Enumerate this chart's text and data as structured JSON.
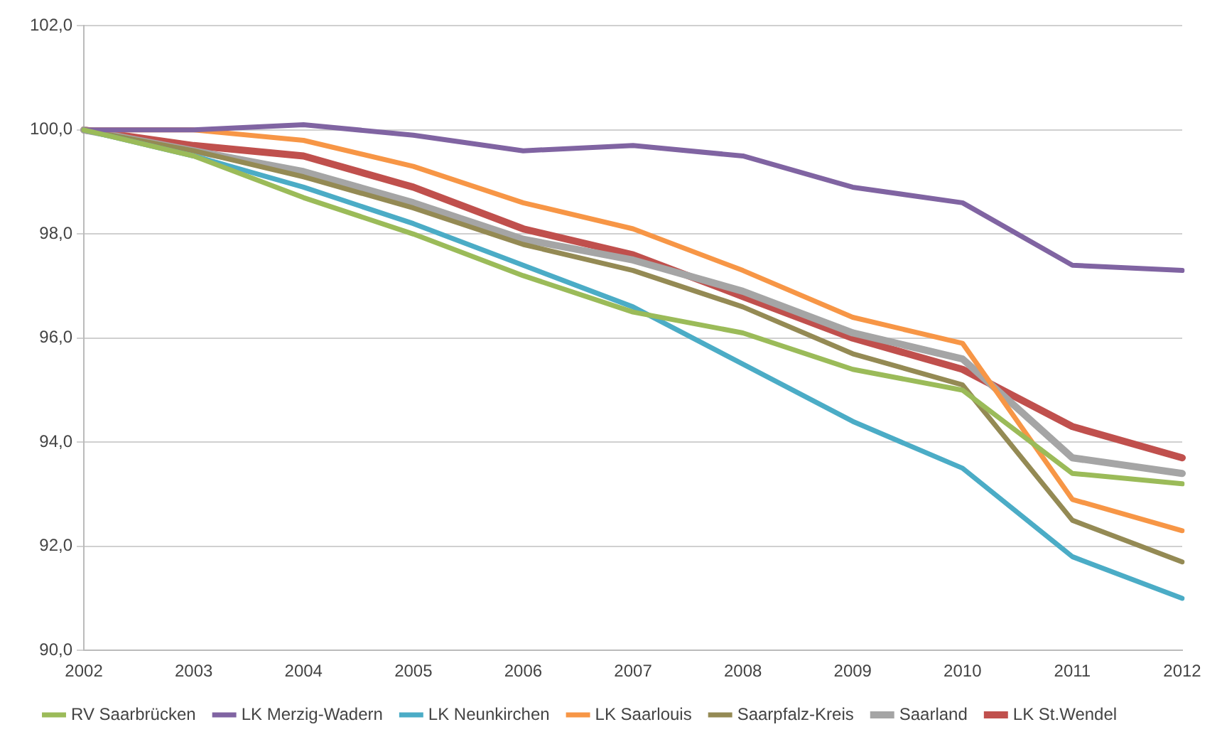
{
  "chart_data": {
    "type": "line",
    "categories": [
      "2002",
      "2003",
      "2004",
      "2005",
      "2006",
      "2007",
      "2008",
      "2009",
      "2010",
      "2011",
      "2012"
    ],
    "series": [
      {
        "name": "RV Saarbrücken",
        "color": "#9bbb59",
        "values": [
          100,
          99.5,
          98.7,
          98.0,
          97.2,
          96.5,
          96.1,
          95.4,
          95.0,
          93.4,
          93.2
        ]
      },
      {
        "name": "LK Merzig-Wadern",
        "color": "#8064a2",
        "values": [
          100,
          100.0,
          100.1,
          99.9,
          99.6,
          99.7,
          99.5,
          98.9,
          98.6,
          97.4,
          97.3
        ]
      },
      {
        "name": "LK Neunkirchen",
        "color": "#4bacc6",
        "values": [
          100,
          99.5,
          98.9,
          98.2,
          97.4,
          96.6,
          95.5,
          94.4,
          93.5,
          91.8,
          91.0
        ]
      },
      {
        "name": "LK Saarlouis",
        "color": "#f79646",
        "values": [
          100,
          100.0,
          99.8,
          99.3,
          98.6,
          98.1,
          97.3,
          96.4,
          95.9,
          92.9,
          92.3
        ]
      },
      {
        "name": "Saarpfalz-Kreis",
        "color": "#948a54",
        "values": [
          100,
          99.6,
          99.1,
          98.5,
          97.8,
          97.3,
          96.6,
          95.7,
          95.1,
          92.5,
          91.7
        ]
      },
      {
        "name": "Saarland",
        "color": "#a5a5a5",
        "values": [
          100,
          99.6,
          99.2,
          98.6,
          97.9,
          97.5,
          96.9,
          96.1,
          95.6,
          93.7,
          93.4
        ]
      },
      {
        "name": "LK St.Wendel",
        "color": "#c0504d",
        "values": [
          100,
          99.7,
          99.5,
          98.9,
          98.1,
          97.6,
          96.8,
          96.0,
          95.4,
          94.3,
          93.7
        ]
      }
    ],
    "ylim": [
      90,
      102
    ],
    "yticks": [
      {
        "value": 90,
        "label": "90,0"
      },
      {
        "value": 92,
        "label": "92,0"
      },
      {
        "value": 94,
        "label": "94,0"
      },
      {
        "value": 96,
        "label": "96,0"
      },
      {
        "value": 98,
        "label": "98,0"
      },
      {
        "value": 100,
        "label": "100,0"
      },
      {
        "value": 102,
        "label": "102,0"
      }
    ],
    "grid": "y",
    "legend": "bottom",
    "marker": "none",
    "line_style": "solid"
  }
}
